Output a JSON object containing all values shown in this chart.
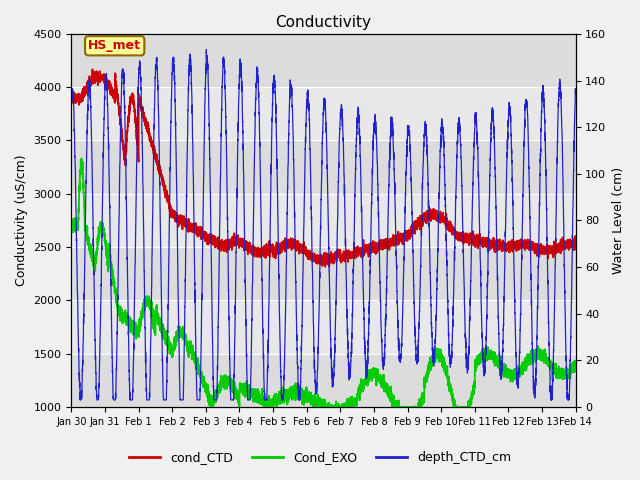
{
  "title": "Conductivity",
  "ylabel_left": "Conductivity (uS/cm)",
  "ylabel_right": "Water Level (cm)",
  "ylim_left": [
    1000,
    4500
  ],
  "ylim_right": [
    0,
    160
  ],
  "x_tick_labels": [
    "Jan 30",
    "Jan 31",
    "Feb 1",
    "Feb 2",
    "Feb 3",
    "Feb 4",
    "Feb 5",
    "Feb 6",
    "Feb 7",
    "Feb 8",
    "Feb 9",
    "Feb 10",
    "Feb 11",
    "Feb 12",
    "Feb 13",
    "Feb 14"
  ],
  "yticks_left": [
    1000,
    1500,
    2000,
    2500,
    3000,
    3500,
    4000,
    4500
  ],
  "yticks_right": [
    0,
    20,
    40,
    60,
    80,
    100,
    120,
    140,
    160
  ],
  "annotation_text": "HS_met",
  "annotation_color": "#cc0000",
  "annotation_bg": "#ffff99",
  "annotation_border": "#886600",
  "fig_bg": "#f0f0f0",
  "plot_bg": "#e8e8e8",
  "band_colors": [
    "#dcdcdc",
    "#e8e8e8"
  ],
  "legend_items": [
    "cond_CTD",
    "Cond_EXO",
    "depth_CTD_cm"
  ],
  "line_color_ctd": "#cc0000",
  "line_color_exo": "#00cc00",
  "line_color_depth": "#2222cc",
  "grid_color": "#ffffff",
  "seed": 42
}
